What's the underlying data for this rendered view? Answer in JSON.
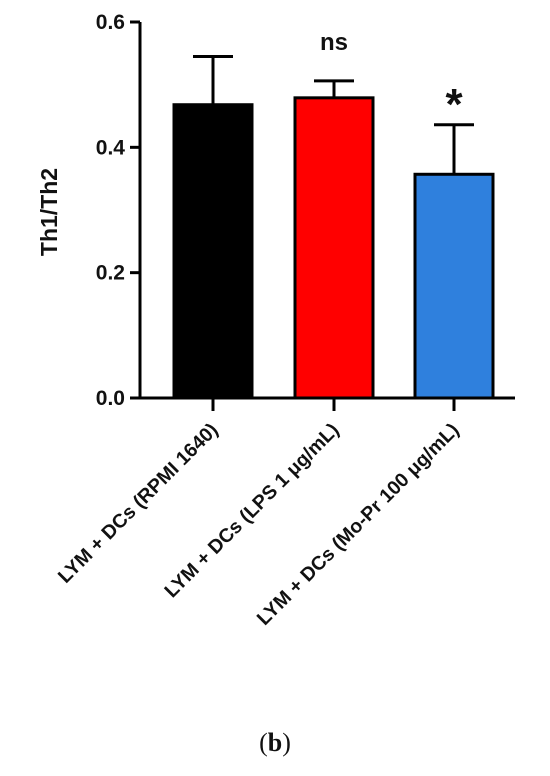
{
  "chart_data": {
    "type": "bar",
    "ylabel": "Th1/Th2",
    "xlabel": "",
    "ylim": [
      0,
      0.6
    ],
    "yticks": [
      0.0,
      0.2,
      0.4,
      0.6
    ],
    "ytick_labels": [
      "0.0",
      "0.2",
      "0.4",
      "0.6"
    ],
    "categories": [
      "LYM + DCs (RPMI 1640)",
      "LYM + DCs (LPS 1 μg/mL)",
      "LYM + DCs (Mo-Pr 100 μg/mL)"
    ],
    "values": [
      0.468,
      0.479,
      0.357
    ],
    "errors": [
      0.077,
      0.027,
      0.079
    ],
    "bar_colors": [
      "#000000",
      "#ff0000",
      "#2f80dd"
    ],
    "annotations": [
      "",
      "ns",
      "*"
    ],
    "grid": false
  },
  "panel_label": {
    "open": "(",
    "letter": "b",
    "close": ")"
  }
}
